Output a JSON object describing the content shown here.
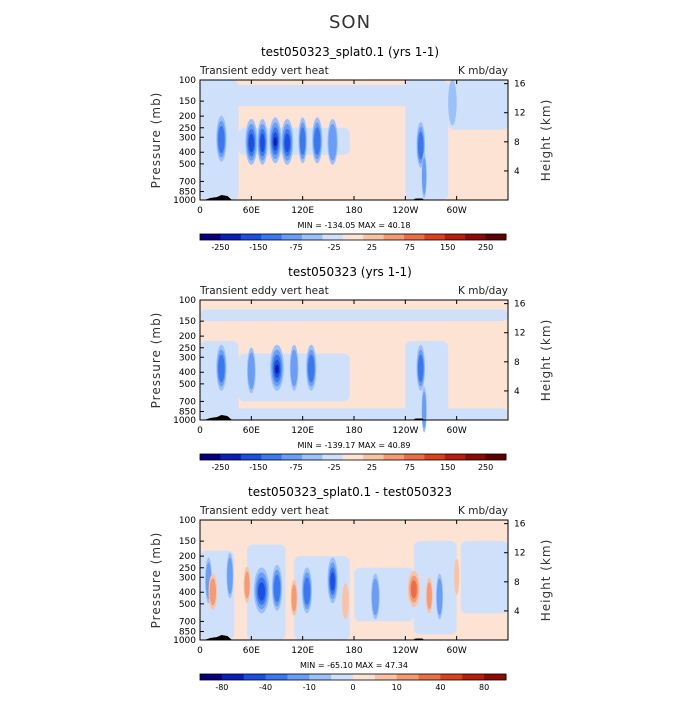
{
  "page_title": "SON",
  "colors": {
    "blue_bg": "#cfe0fb",
    "orange_bg": "#fde3d3",
    "frame": "#000000"
  },
  "chart_data": [
    {
      "type": "heatmap",
      "title": "test050323_splat0.1 (yrs 1-1)",
      "left_label": "Transient eddy vert heat",
      "right_label": "K mb/day",
      "ylabel": "Pressure (mb)",
      "y2label": "Height (km)",
      "y_ticks": [
        "100",
        "150",
        "200",
        "250",
        "300",
        "400",
        "500",
        "700",
        "850",
        "1000"
      ],
      "y2_ticks": [
        "16",
        "12",
        "8",
        "4"
      ],
      "x_ticks": [
        "0",
        "60E",
        "120E",
        "180",
        "120W",
        "60W"
      ],
      "stats": "MIN = -134.05   MAX =  40.18",
      "colorbar_labels": [
        "-250",
        "-150",
        "-75",
        "-25",
        "25",
        "75",
        "150",
        "250"
      ],
      "colorbar_colors": [
        "#06007f",
        "#0a1fb8",
        "#1a4fe0",
        "#3a78f0",
        "#6a9ef6",
        "#9cc1fa",
        "#cfe0fb",
        "#fde3d3",
        "#fac3a3",
        "#f59a73",
        "#ea6e47",
        "#d8421f",
        "#b81c0b",
        "#8a0a05",
        "#5e0000"
      ]
    },
    {
      "type": "heatmap",
      "title": "test050323 (yrs 1-1)",
      "left_label": "Transient eddy vert heat",
      "right_label": "K mb/day",
      "ylabel": "Pressure (mb)",
      "y2label": "Height (km)",
      "y_ticks": [
        "100",
        "150",
        "200",
        "250",
        "300",
        "400",
        "500",
        "700",
        "850",
        "1000"
      ],
      "y2_ticks": [
        "16",
        "12",
        "8",
        "4"
      ],
      "x_ticks": [
        "0",
        "60E",
        "120E",
        "180",
        "120W",
        "60W"
      ],
      "stats": "MIN = -139.17   MAX =  40.89",
      "colorbar_labels": [
        "-250",
        "-150",
        "-75",
        "-25",
        "25",
        "75",
        "150",
        "250"
      ],
      "colorbar_colors": [
        "#06007f",
        "#0a1fb8",
        "#1a4fe0",
        "#3a78f0",
        "#6a9ef6",
        "#9cc1fa",
        "#cfe0fb",
        "#fde3d3",
        "#fac3a3",
        "#f59a73",
        "#ea6e47",
        "#d8421f",
        "#b81c0b",
        "#8a0a05",
        "#5e0000"
      ]
    },
    {
      "type": "heatmap",
      "title": "test050323_splat0.1 - test050323",
      "left_label": "Transient eddy vert heat",
      "right_label": "K mb/day",
      "ylabel": "Pressure (mb)",
      "y2label": "Height (km)",
      "y_ticks": [
        "100",
        "150",
        "200",
        "250",
        "300",
        "400",
        "500",
        "700",
        "850",
        "1000"
      ],
      "y2_ticks": [
        "16",
        "12",
        "8",
        "4"
      ],
      "x_ticks": [
        "0",
        "60E",
        "120E",
        "180",
        "120W",
        "60W"
      ],
      "stats": "MIN = -65.10   MAX =  47.34",
      "colorbar_labels": [
        "-80",
        "-40",
        "-10",
        "0",
        "10",
        "40",
        "80"
      ],
      "colorbar_colors": [
        "#06007f",
        "#0a1fb8",
        "#1a4fe0",
        "#3a78f0",
        "#6a9ef6",
        "#9cc1fa",
        "#cfe0fb",
        "#fde3d3",
        "#fac3a3",
        "#f59a73",
        "#ea6e47",
        "#d8421f",
        "#b81c0b",
        "#8a0a05"
      ]
    }
  ]
}
